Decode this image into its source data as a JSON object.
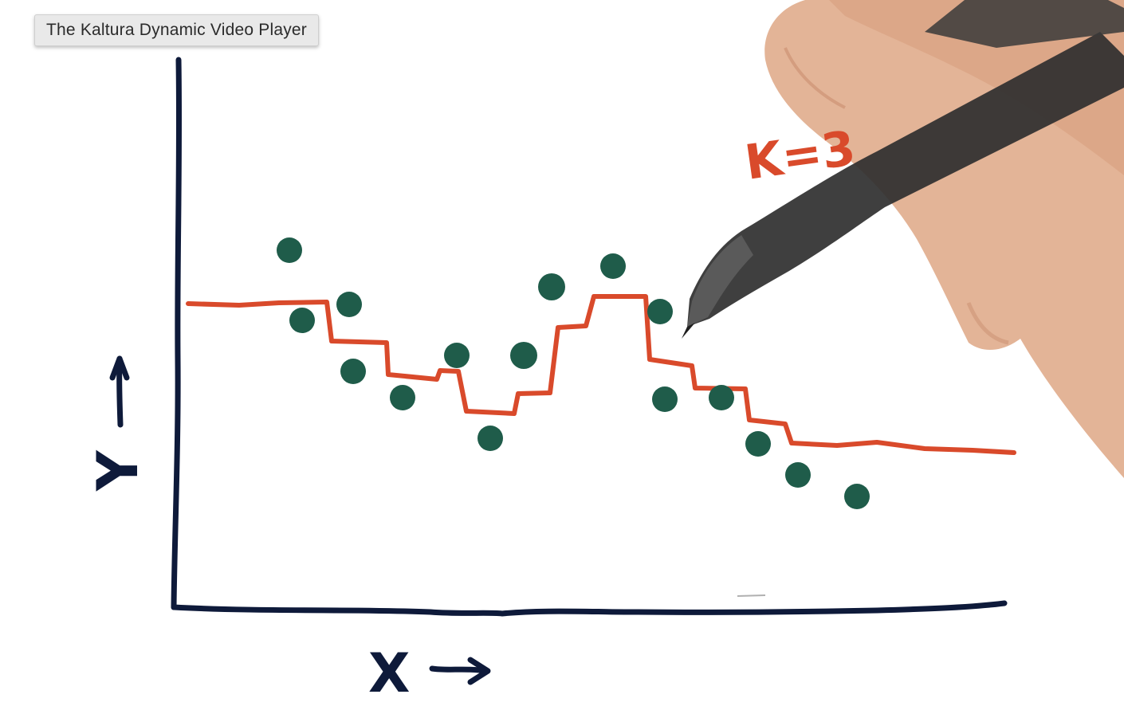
{
  "player": {
    "tooltip_title": "The Kaltura Dynamic Video Player"
  },
  "drawing": {
    "annotation": "K=3",
    "x_axis_label": "X",
    "y_axis_label": "Y",
    "colors": {
      "axes": "#0e1a3a",
      "curve": "#d94a2b",
      "points": "#1f5c4a",
      "skin": "#e8b79a"
    },
    "icons": [
      "arrow-right-icon",
      "arrow-up-icon",
      "stylus-pen-icon",
      "hand-icon"
    ]
  }
}
